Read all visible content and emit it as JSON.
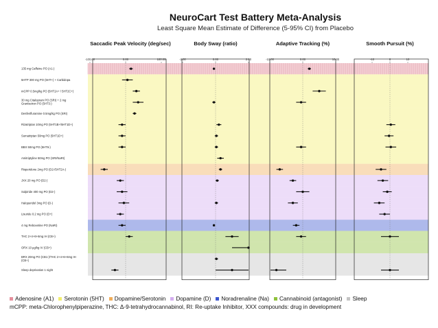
{
  "chart_data": {
    "type": "forest-plot",
    "title": "NeuroCart Test Battery Meta-Analysis",
    "subtitle": "Least Square Mean Estimate of Difference (5-95% CI) from Placebo",
    "panels": [
      {
        "id": "spv",
        "name": "Saccadic Peak Velocity (deg/sec)",
        "ticks": [
          {
            "value": -100,
            "label": "-100.00"
          },
          {
            "value": 0,
            "label": "0.00"
          },
          {
            "value": 100,
            "label": "100.00"
          }
        ]
      },
      {
        "id": "sway",
        "name": "Body Sway (ratio)",
        "ticks": [
          {
            "value": -2,
            "label": "-2.00"
          },
          {
            "value": 0,
            "label": "0.00"
          },
          {
            "value": 2,
            "label": "2.00"
          }
        ]
      },
      {
        "id": "track",
        "name": "Adaptive Tracking (%)",
        "ticks": [
          {
            "value": -10,
            "label": "-10.00"
          },
          {
            "value": 0,
            "label": "0.00"
          },
          {
            "value": 10,
            "label": "10.00"
          }
        ]
      },
      {
        "id": "pursuit",
        "name": "Smooth Pursuit (%)",
        "ticks": [
          {
            "value": -10,
            "label": "-10"
          },
          {
            "value": 0,
            "label": "0"
          },
          {
            "value": 10,
            "label": "10"
          }
        ]
      }
    ],
    "groups": [
      {
        "key": "adenosine",
        "label": "Adenosine (A1)",
        "color": "#e58f9c"
      },
      {
        "key": "serotonin",
        "label": "Serotonin (5HT)",
        "color": "#f2ee6e"
      },
      {
        "key": "dopser",
        "label": "Dopamine/Serotonin",
        "color": "#f0ad5a"
      },
      {
        "key": "dopamine",
        "label": "Dopamine (D)",
        "color": "#d4aef0"
      },
      {
        "key": "noradrenaline",
        "label": "Noradrenaline (Na)",
        "color": "#3d57cf"
      },
      {
        "key": "cannabinoid",
        "label": "Cannabinoid (antagonist)",
        "color": "#8fc23c"
      },
      {
        "key": "sleep",
        "label": "Sleep",
        "color": "#c4c4c4"
      }
    ],
    "rows": [
      {
        "label": "135 mg Caffeine PO (A1-)",
        "group": "adenosine",
        "spv": [
          15,
          10,
          20
        ],
        "sway": [
          -0.1,
          -0.15,
          -0.05
        ],
        "track": [
          2,
          1.5,
          2.5
        ],
        "pursuit": null
      },
      {
        "label": "5HTP 300 mg PO (5HT+) + Carbidopa",
        "group": "serotonin",
        "spv": [
          5,
          -10,
          20
        ],
        "sway": null,
        "track": null,
        "pursuit": null
      },
      {
        "label": "mCPP 0.5mg/kg PO (5HT2A+ / 5HT2C+)",
        "group": "serotonin",
        "spv": [
          30,
          20,
          40
        ],
        "sway": null,
        "track": [
          5,
          3,
          7
        ],
        "pursuit": null
      },
      {
        "label": "30 mg Citalopram PO (SRI) + 2 mg Granisetron PO (5HT3-)",
        "group": "serotonin",
        "spv": [
          35,
          20,
          50
        ],
        "sway": [
          -0.1,
          -0.2,
          0.0
        ],
        "track": [
          -0.5,
          -2,
          1
        ],
        "pursuit": null
      },
      {
        "label": "Desfenfluramine 0.5mg/kg PO (SRI)",
        "group": "serotonin",
        "spv": [
          25,
          20,
          30
        ],
        "sway": null,
        "track": null,
        "pursuit": null
      },
      {
        "label": "Rizatriptan 10mg PO (5HT1B+/5HT1D+)",
        "group": "serotonin",
        "spv": [
          -10,
          -20,
          0
        ],
        "sway": [
          0.2,
          0.05,
          0.35
        ],
        "track": null,
        "pursuit": [
          0.5,
          -2,
          3
        ]
      },
      {
        "label": "Sumatriptan 50mg PO (5HT1D+)",
        "group": "serotonin",
        "spv": [
          -10,
          -20,
          0
        ],
        "sway": [
          0.05,
          -0.05,
          0.15
        ],
        "track": null,
        "pursuit": [
          -0.5,
          -3,
          2
        ]
      },
      {
        "label": "BBX 50mg PO (5HT6-)",
        "group": "serotonin",
        "spv": [
          -10,
          -20,
          0
        ],
        "sway": [
          0.05,
          -0.05,
          0.15
        ],
        "track": [
          -0.5,
          -2,
          1
        ],
        "pursuit": [
          0.5,
          -2.5,
          3.5
        ]
      },
      {
        "label": "Amitriptyline 50mg PO (SRI/NaRI)",
        "group": "serotonin",
        "spv": null,
        "sway": [
          0.3,
          0.1,
          0.5
        ],
        "track": null,
        "pursuit": null
      },
      {
        "label": "Risperidone 2mg PO (D2-/5HT2A-)",
        "group": "dopser",
        "spv": [
          -60,
          -70,
          -50
        ],
        "sway": [
          0.3,
          0.2,
          0.4
        ],
        "track": [
          -7,
          -8,
          -6
        ],
        "pursuit": [
          -5,
          -8,
          -2
        ]
      },
      {
        "label": "JXX 20 mg PO (D2-)",
        "group": "dopamine",
        "spv": [
          -15,
          -25,
          -5
        ],
        "sway": [
          0.1,
          0.0,
          0.2
        ],
        "track": [
          -3,
          -4,
          -2
        ],
        "pursuit": [
          -4,
          -7,
          -1
        ]
      },
      {
        "label": "Sulpiride 400 mg PO (D2-)",
        "group": "dopamine",
        "spv": [
          -10,
          -25,
          5
        ],
        "sway": null,
        "track": [
          0,
          -2,
          2
        ],
        "pursuit": [
          -1.5,
          -4,
          1
        ]
      },
      {
        "label": "Haloperidol 3mg PO (D-)",
        "group": "dopamine",
        "spv": [
          -5,
          -20,
          10
        ],
        "sway": [
          0.05,
          -0.05,
          0.15
        ],
        "track": [
          -3,
          -4.5,
          -1.5
        ],
        "pursuit": [
          -6,
          -9,
          -3
        ]
      },
      {
        "label": "Lisuride 0.2 mg PO (D+)",
        "group": "dopamine",
        "spv": [
          -15,
          -25,
          -5
        ],
        "sway": null,
        "track": null,
        "pursuit": [
          -3,
          -6,
          0
        ]
      },
      {
        "label": "4 mg Reboxetine PO (NaRI)",
        "group": "noradrenaline",
        "spv": [
          -10,
          -20,
          0
        ],
        "sway": [
          -0.1,
          -0.15,
          -0.05
        ],
        "track": [
          -2,
          -3,
          -1
        ],
        "pursuit": null
      },
      {
        "label": "THC 2+4+6+6mg IH (CB+)",
        "group": "cannabinoid",
        "spv": [
          10,
          0,
          20
        ],
        "sway": [
          1,
          0.6,
          1.4
        ],
        "track": [
          -0.5,
          -2,
          1
        ],
        "pursuit": [
          0,
          -5,
          5
        ]
      },
      {
        "label": "ORX 10 µg/kg IV (CB+)",
        "group": "cannabinoid",
        "spv": null,
        "sway": [
          2,
          1,
          3
        ],
        "track": null,
        "pursuit": null
      },
      {
        "label": "BRX 20mg PO (CB1-)/THC 2+4+6+6mg IH (CB+)",
        "group": "sleep",
        "spv": null,
        "sway": [
          0.05,
          -0.05,
          0.15
        ],
        "track": null,
        "pursuit": null
      },
      {
        "label": "Sleep deprivation 1 night",
        "group": "sleep",
        "spv": [
          -30,
          -40,
          -20
        ],
        "sway": [
          1,
          0,
          2
        ],
        "track": [
          -8,
          -11,
          -5
        ],
        "pursuit": [
          0,
          -5,
          5
        ]
      }
    ]
  },
  "legend": {
    "items": [
      {
        "label": "Adenosine (A1)",
        "color": "#e58f9c"
      },
      {
        "label": "Serotonin (5HT)",
        "color": "#f2ee6e"
      },
      {
        "label": "Dopamine/Serotonin",
        "color": "#f0ad5a"
      },
      {
        "label": "Dopamine (D)",
        "color": "#d4aef0"
      },
      {
        "label": "Noradrenaline (Na)",
        "color": "#3d57cf"
      },
      {
        "label": "Cannabinoid (antagonist)",
        "color": "#8fc23c"
      },
      {
        "label": "Sleep",
        "color": "#c4c4c4"
      }
    ],
    "footnote": "mCPP: meta-Chlorophenylpiperazine, THC: Δ-9-tetrahydrocannabinol, RI: Re-uptake Inhibitor, XXX compounds: drug in development"
  }
}
